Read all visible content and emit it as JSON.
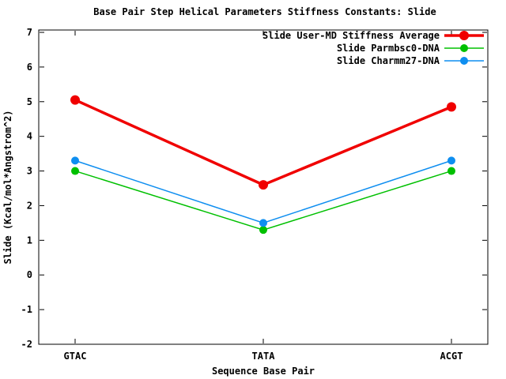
{
  "chart_data": {
    "type": "line",
    "title": "Base Pair Step Helical Parameters Stiffness Constants: Slide",
    "xlabel": "Sequence Base Pair",
    "ylabel": "Slide (Kcal/mol*Angstrom^2)",
    "categories": [
      "GTAC",
      "TATA",
      "ACGT"
    ],
    "series": [
      {
        "name": "Slide User-MD Stiffness Average",
        "color": "#f00000",
        "values": [
          5.05,
          2.6,
          4.85
        ]
      },
      {
        "name": "Slide Parmbsc0-DNA",
        "color": "#00c000",
        "values": [
          3.0,
          1.3,
          3.0
        ]
      },
      {
        "name": "Slide Charmm27-DNA",
        "color": "#0e8ef0",
        "values": [
          3.3,
          1.5,
          3.3
        ]
      }
    ],
    "ylim": [
      -2,
      7
    ],
    "ytick_step": 1,
    "ytick_labels": [
      "-2",
      "-1",
      "0",
      "1",
      "2",
      "3",
      "4",
      "5",
      "6",
      "7"
    ],
    "grid": false,
    "legend_position": "top-right-inside",
    "background_color": "#ffffff",
    "frame_color": "#000000",
    "text_color": "#000000"
  }
}
